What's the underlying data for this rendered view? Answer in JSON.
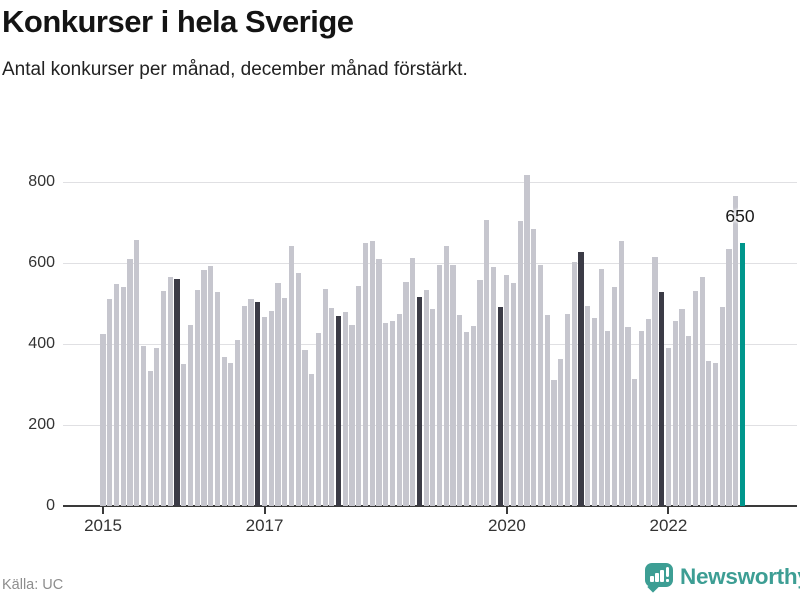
{
  "header": {
    "title": "Konkurser i hela Sverige",
    "subtitle": "Antal konkurser per månad, december månad förstärkt."
  },
  "footer": {
    "source": "Källa: UC",
    "brand": "Newsworthy"
  },
  "chart_data": {
    "type": "bar",
    "title": "Konkurser i hela Sverige",
    "subtitle": "Antal konkurser per månad, december månad förstärkt.",
    "ylabel": "",
    "xlabel": "",
    "grid": true,
    "legend": false,
    "december_emphasized": true,
    "series": [
      {
        "year": 2015,
        "values": [
          425,
          510,
          548,
          540,
          611,
          658,
          395,
          333,
          390,
          531,
          566,
          560
        ]
      },
      {
        "year": 2016,
        "values": [
          351,
          447,
          533,
          583,
          593,
          528,
          368,
          353,
          410,
          494,
          511,
          504
        ]
      },
      {
        "year": 2017,
        "values": [
          467,
          481,
          551,
          514,
          642,
          575,
          385,
          326,
          427,
          536,
          490,
          470
        ]
      },
      {
        "year": 2018,
        "values": [
          479,
          447,
          543,
          650,
          654,
          610,
          452,
          457,
          474,
          553,
          612,
          516
        ]
      },
      {
        "year": 2019,
        "values": [
          533,
          486,
          595,
          642,
          595,
          472,
          430,
          445,
          558,
          706,
          590,
          491
        ]
      },
      {
        "year": 2020,
        "values": [
          570,
          551,
          704,
          818,
          684,
          595,
          472,
          311,
          363,
          474,
          602,
          627
        ]
      },
      {
        "year": 2021,
        "values": [
          494,
          464,
          585,
          432,
          541,
          654,
          442,
          314,
          432,
          462,
          615,
          528
        ]
      },
      {
        "year": 2022,
        "values": [
          390,
          457,
          486,
          420,
          531,
          565,
          358,
          353,
          491,
          634,
          765,
          650
        ]
      }
    ],
    "annotation": {
      "text": "650",
      "year": 2022,
      "month": 12
    },
    "x_axis": {
      "ticks": [
        {
          "label": "2015",
          "month_index": 0
        },
        {
          "label": "2017",
          "month_index": 24
        },
        {
          "label": "2020",
          "month_index": 60
        },
        {
          "label": "2022",
          "month_index": 84
        }
      ]
    },
    "y_axis": {
      "ticks": [
        0,
        200,
        400,
        600,
        800
      ],
      "ylim": [
        0,
        850
      ]
    },
    "colors": {
      "bar": "#c6c6ce",
      "december": "#3b3b46",
      "highlight": "#00968c",
      "gridline": "#e0e0e3",
      "axis": "#3a3a3a",
      "logo_teal": "#3d9e94"
    }
  }
}
